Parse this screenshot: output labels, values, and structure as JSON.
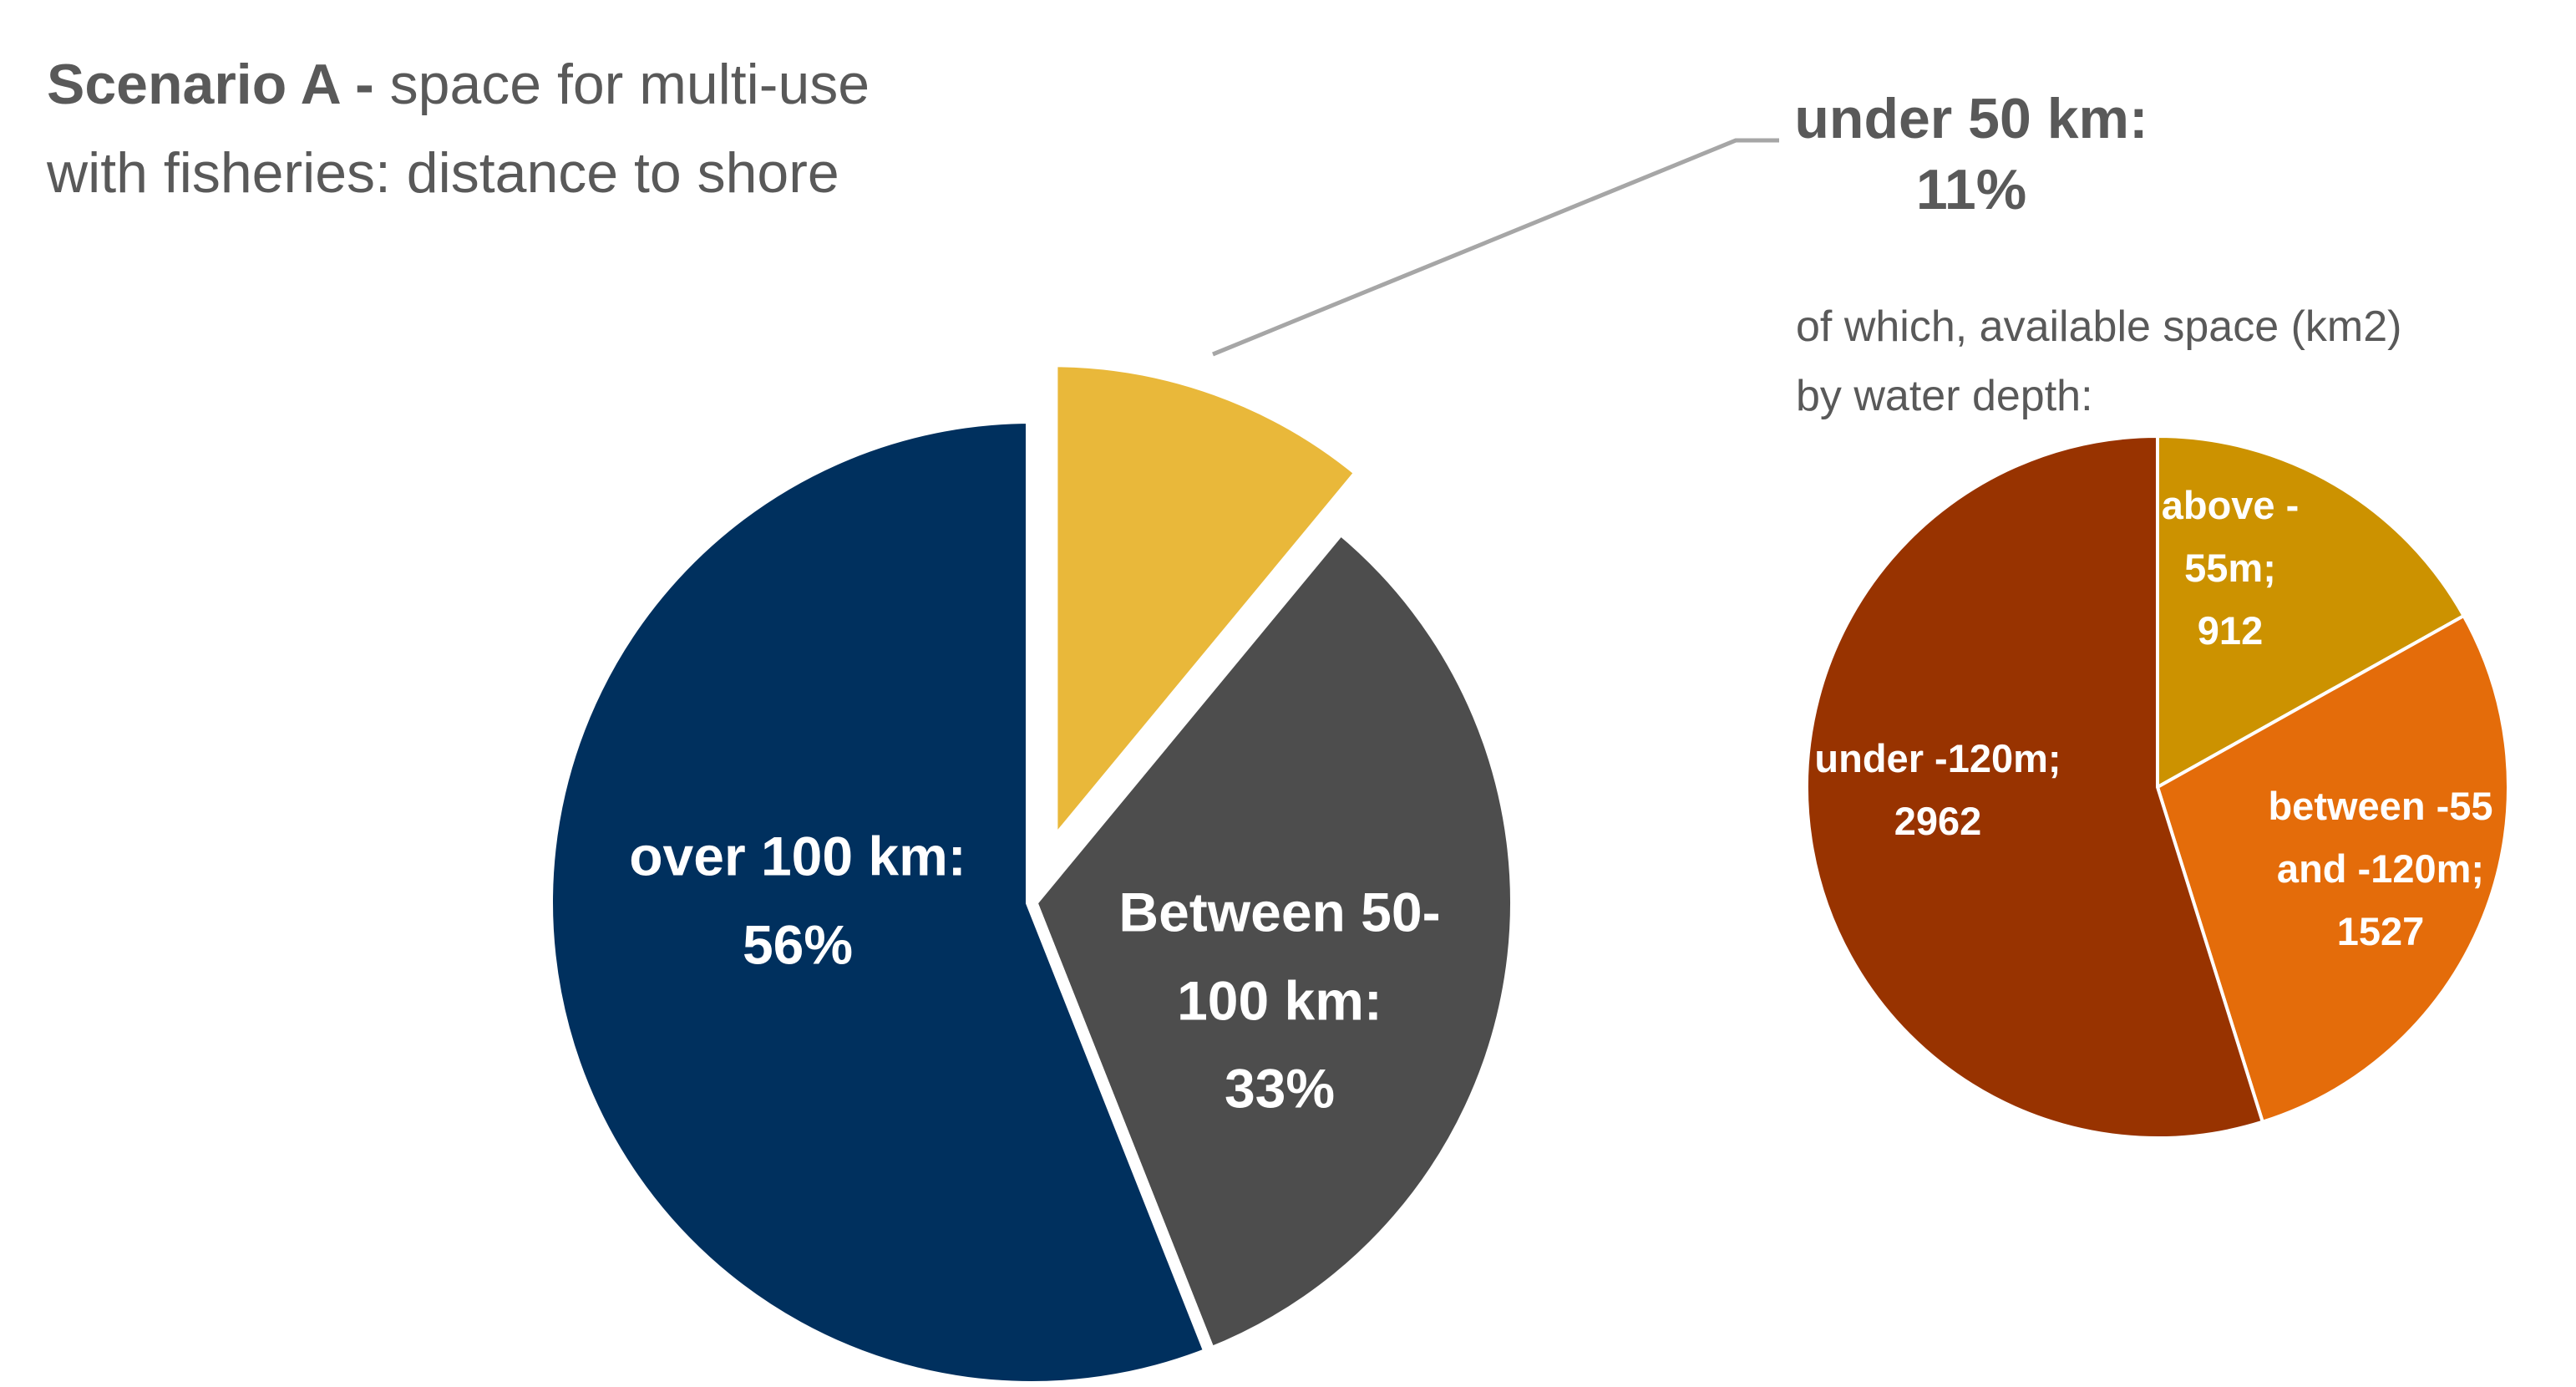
{
  "title": {
    "bold": "Scenario A -",
    "rest1": " space for multi-use",
    "line2": "with fisheries: distance to shore"
  },
  "callout": {
    "line1": "under 50 km:",
    "line2": "11%"
  },
  "sub_note": {
    "line1": "of which, available space (km2)",
    "line2": "by water depth:"
  },
  "chart_data": [
    {
      "type": "pie",
      "title": "Scenario A - space for multi-use with fisheries: distance to shore",
      "slices": [
        {
          "label": "under 50 km",
          "value": 11,
          "display": "11%",
          "color": "#E9B83A",
          "exploded": true
        },
        {
          "label": "Between 50-100 km",
          "value": 33,
          "display": "33%",
          "color": "#4D4D4D",
          "label_lines": [
            "Between 50-",
            "100 km:",
            "33%"
          ]
        },
        {
          "label": "over 100 km",
          "value": 56,
          "display": "56%",
          "color": "#00305E",
          "label_lines": [
            "over 100 km:",
            "56%"
          ]
        }
      ]
    },
    {
      "type": "pie",
      "title": "of which, available space (km2) by water depth:",
      "slices": [
        {
          "label": "above -55m",
          "value": 912,
          "color": "#CC9200",
          "label_lines": [
            "above -",
            "55m;",
            "912"
          ]
        },
        {
          "label": "between -55 and -120m",
          "value": 1527,
          "color": "#E46C0A",
          "label_lines": [
            "between -55",
            "and -120m;",
            "1527"
          ]
        },
        {
          "label": "under -120m",
          "value": 2962,
          "color": "#983300",
          "label_lines": [
            "under -120m;",
            "2962"
          ]
        }
      ]
    }
  ]
}
